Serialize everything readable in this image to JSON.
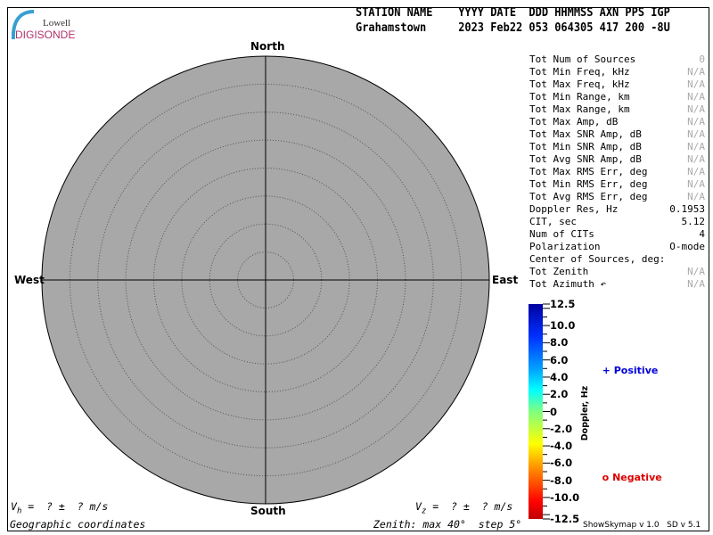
{
  "logo": {
    "line1": "Lowell",
    "line2": "DIGISONDE"
  },
  "header": {
    "labels": "STATION NAME    YYYY DATE  DDD HHMMSS AXN PPS IGP",
    "values": "Grahamstown     2023 Feb22 053 064305 417 200 -8U"
  },
  "skymap": {
    "north": "North",
    "south": "South",
    "east": "East",
    "west": "West",
    "zenith_max_deg": 40,
    "zenith_step_deg": 5,
    "background": "#a8a8a8"
  },
  "stats": [
    {
      "label": "Tot Num of Sources",
      "value": "0",
      "muted": true
    },
    {
      "label": "Tot Min Freq, kHz",
      "value": "N/A",
      "muted": true
    },
    {
      "label": "Tot Max Freq, kHz",
      "value": "N/A",
      "muted": true
    },
    {
      "label": "Tot Min Range, km",
      "value": "N/A",
      "muted": true
    },
    {
      "label": "Tot Max Range, km",
      "value": "N/A",
      "muted": true
    },
    {
      "label": "Tot Max Amp, dB",
      "value": "N/A",
      "muted": true
    },
    {
      "label": "Tot Max SNR Amp, dB",
      "value": "N/A",
      "muted": true
    },
    {
      "label": "Tot Min SNR Amp, dB",
      "value": "N/A",
      "muted": true
    },
    {
      "label": "Tot Avg SNR Amp, dB",
      "value": "N/A",
      "muted": true
    },
    {
      "label": "Tot Max RMS Err, deg",
      "value": "N/A",
      "muted": true
    },
    {
      "label": "Tot Min RMS Err, deg",
      "value": "N/A",
      "muted": true
    },
    {
      "label": "Tot Avg RMS Err, deg",
      "value": "N/A",
      "muted": true
    },
    {
      "label": "Doppler Res, Hz",
      "value": "0.1953",
      "muted": false
    },
    {
      "label": "CIT, sec",
      "value": "5.12",
      "muted": false
    },
    {
      "label": "Num of CITs",
      "value": "4",
      "muted": false
    },
    {
      "label": "Polarization",
      "value": "O-mode",
      "muted": false
    },
    {
      "label": "Center of Sources, deg:",
      "value": "",
      "muted": false
    },
    {
      "label": "Tot           Zenith",
      "value": "N/A",
      "muted": true
    },
    {
      "label": "Tot           Azimuth ↶",
      "value": "N/A",
      "muted": true
    }
  ],
  "colorbar": {
    "ticks": [
      "12.5",
      "10.0",
      "8.0",
      "6.0",
      "4.0",
      "2.0",
      "0",
      "-2.0",
      "-4.0",
      "-6.0",
      "-8.0",
      "-10.0",
      "-12.5"
    ],
    "axis_label": "Doppler, Hz",
    "positive": {
      "symbol": "+",
      "label": "Positive",
      "color": "#0000dd"
    },
    "negative": {
      "symbol": "o",
      "label": "Negative",
      "color": "#dd0000"
    }
  },
  "footer": {
    "vh": "V",
    "vh_sub": "h",
    "vh_rest": " =  ? ±  ? m/s",
    "vz": "V",
    "vz_sub": "z",
    "vz_rest": " =  ? ±  ? m/s",
    "coords": "Geographic coordinates",
    "zenith": "Zenith: max 40°  step 5°",
    "version": "ShowSkymap v 1.0   SD v 5.1"
  }
}
